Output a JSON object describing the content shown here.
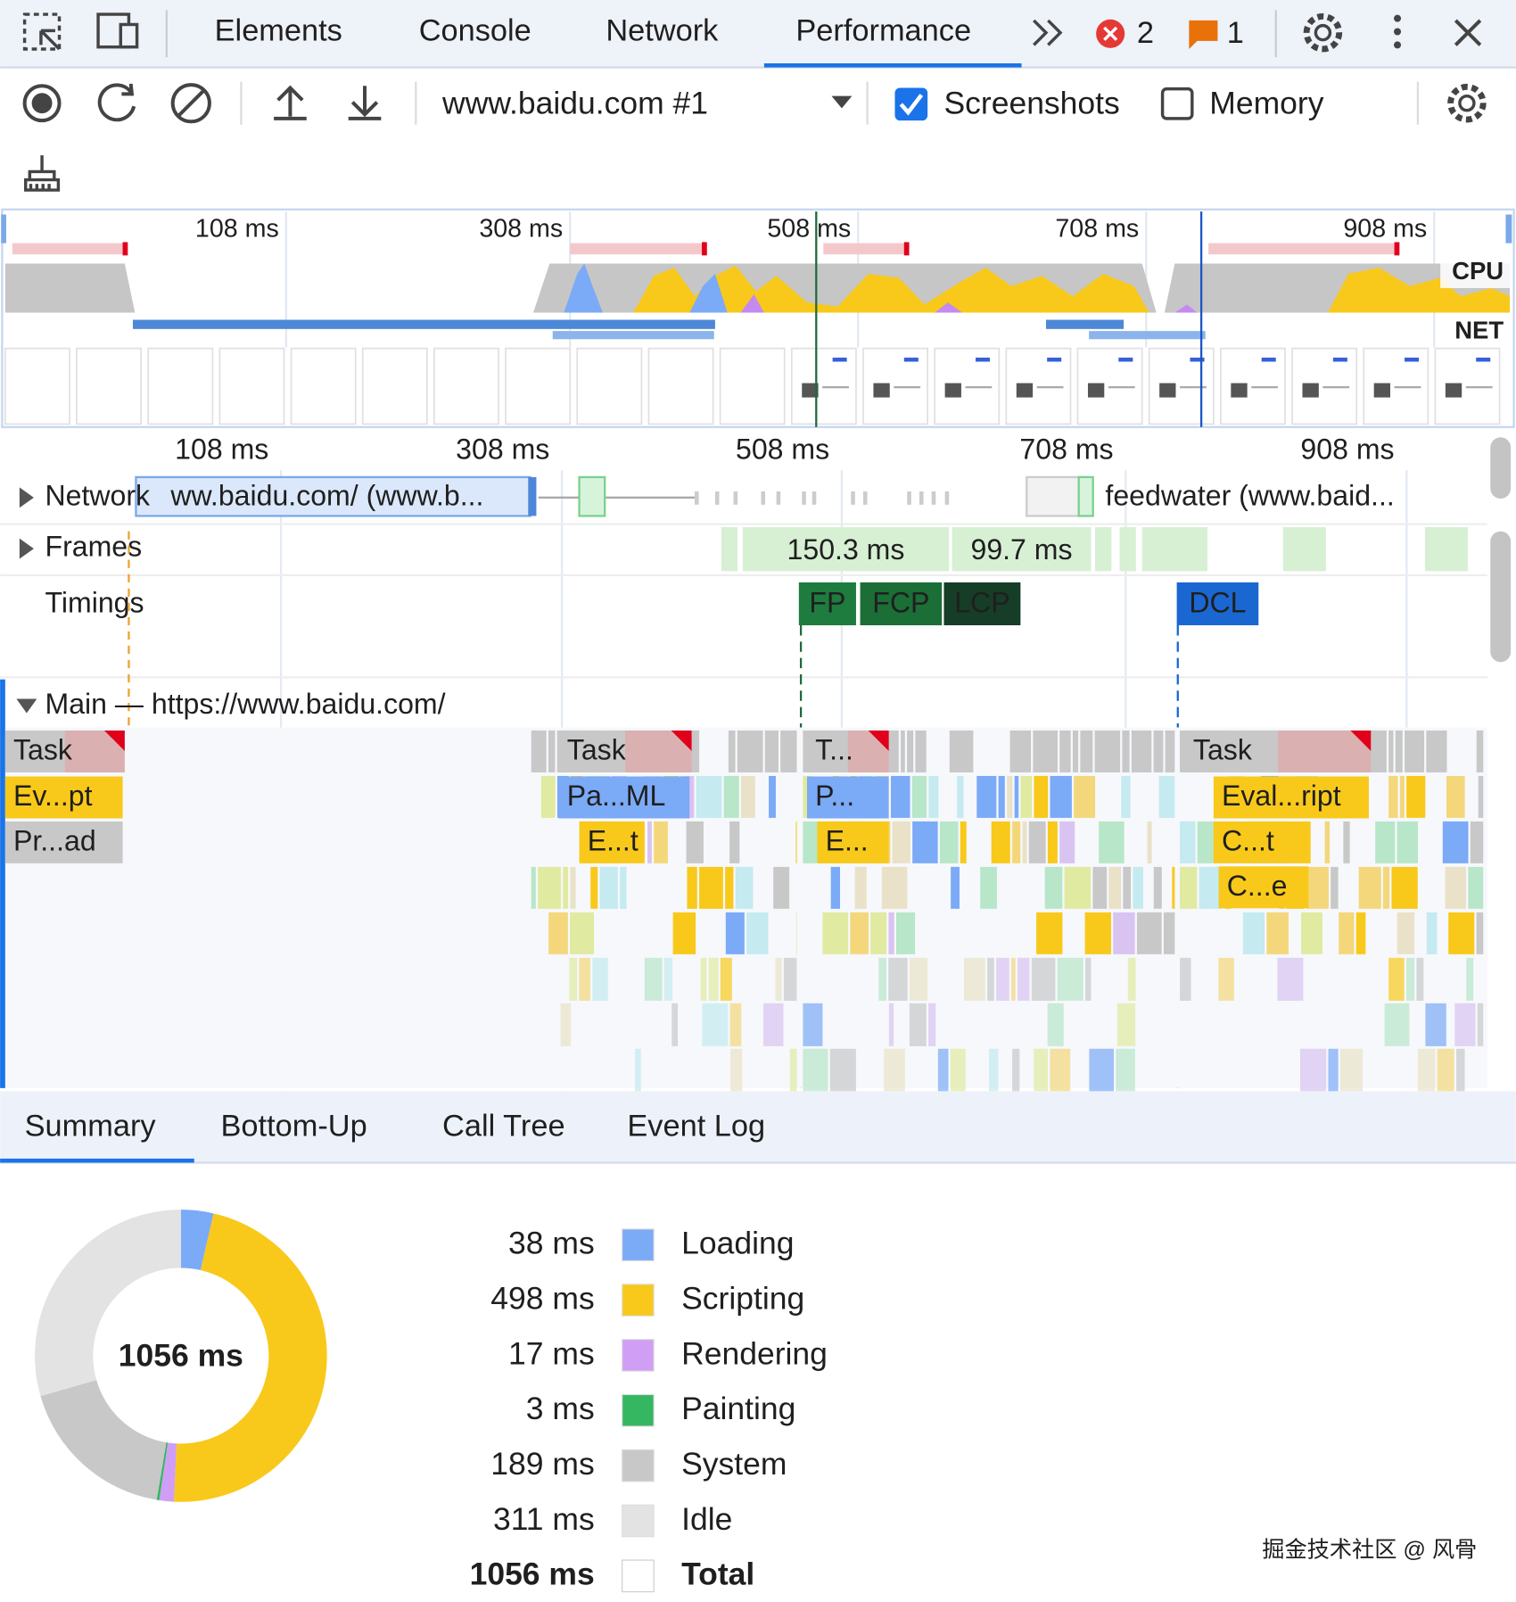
{
  "tabs": [
    "Elements",
    "Console",
    "Network",
    "Performance"
  ],
  "error_count": 2,
  "warning_count": 1,
  "toolbar": {
    "recording": "www.baidu.com #1",
    "screenshots": "Screenshots",
    "memory": "Memory"
  },
  "overview": {
    "ticks": [
      "108 ms",
      "308 ms",
      "508 ms",
      "708 ms",
      "908 ms"
    ],
    "cpu": "CPU",
    "net": "NET"
  },
  "ruler": [
    "108 ms",
    "308 ms",
    "508 ms",
    "708 ms",
    "908 ms"
  ],
  "tracks": {
    "network": "Network",
    "network_items": [
      "ww.baidu.com/ (www.b...",
      "feedwater (www.baid..."
    ],
    "frames": "Frames",
    "frame_items": [
      "150.3 ms",
      "99.7 ms"
    ],
    "timings": "Timings",
    "markers": [
      "FP",
      "FCP",
      "LCP",
      "DCL"
    ],
    "main": "Main — https://www.baidu.com/"
  },
  "flame": [
    "Task",
    "Task",
    "T...",
    "Task",
    "Ev...pt",
    "Pa...ML",
    "P...",
    "Eval...ript",
    "Pr...ad",
    "E...t",
    "E...",
    "C...t",
    "C...e"
  ],
  "summary_tabs": [
    "Summary",
    "Bottom-Up",
    "Call Tree",
    "Event Log"
  ],
  "summary_items": [
    {
      "value": 38,
      "label": "38 ms",
      "name": "Loading",
      "color": "#7baaf7"
    },
    {
      "value": 498,
      "label": "498 ms",
      "name": "Scripting",
      "color": "#f8c91a"
    },
    {
      "value": 17,
      "label": "17 ms",
      "name": "Rendering",
      "color": "#d19ef5"
    },
    {
      "value": 3,
      "label": "3 ms",
      "name": "Painting",
      "color": "#35b761"
    },
    {
      "value": 189,
      "label": "189 ms",
      "name": "System",
      "color": "#c8c8c8"
    },
    {
      "value": 311,
      "label": "311 ms",
      "name": "Idle",
      "color": "#e3e3e3"
    }
  ],
  "total": {
    "value": 1056,
    "label": "1056 ms",
    "name": "Total"
  },
  "watermark": "掘金技术社区 @ 风骨"
}
